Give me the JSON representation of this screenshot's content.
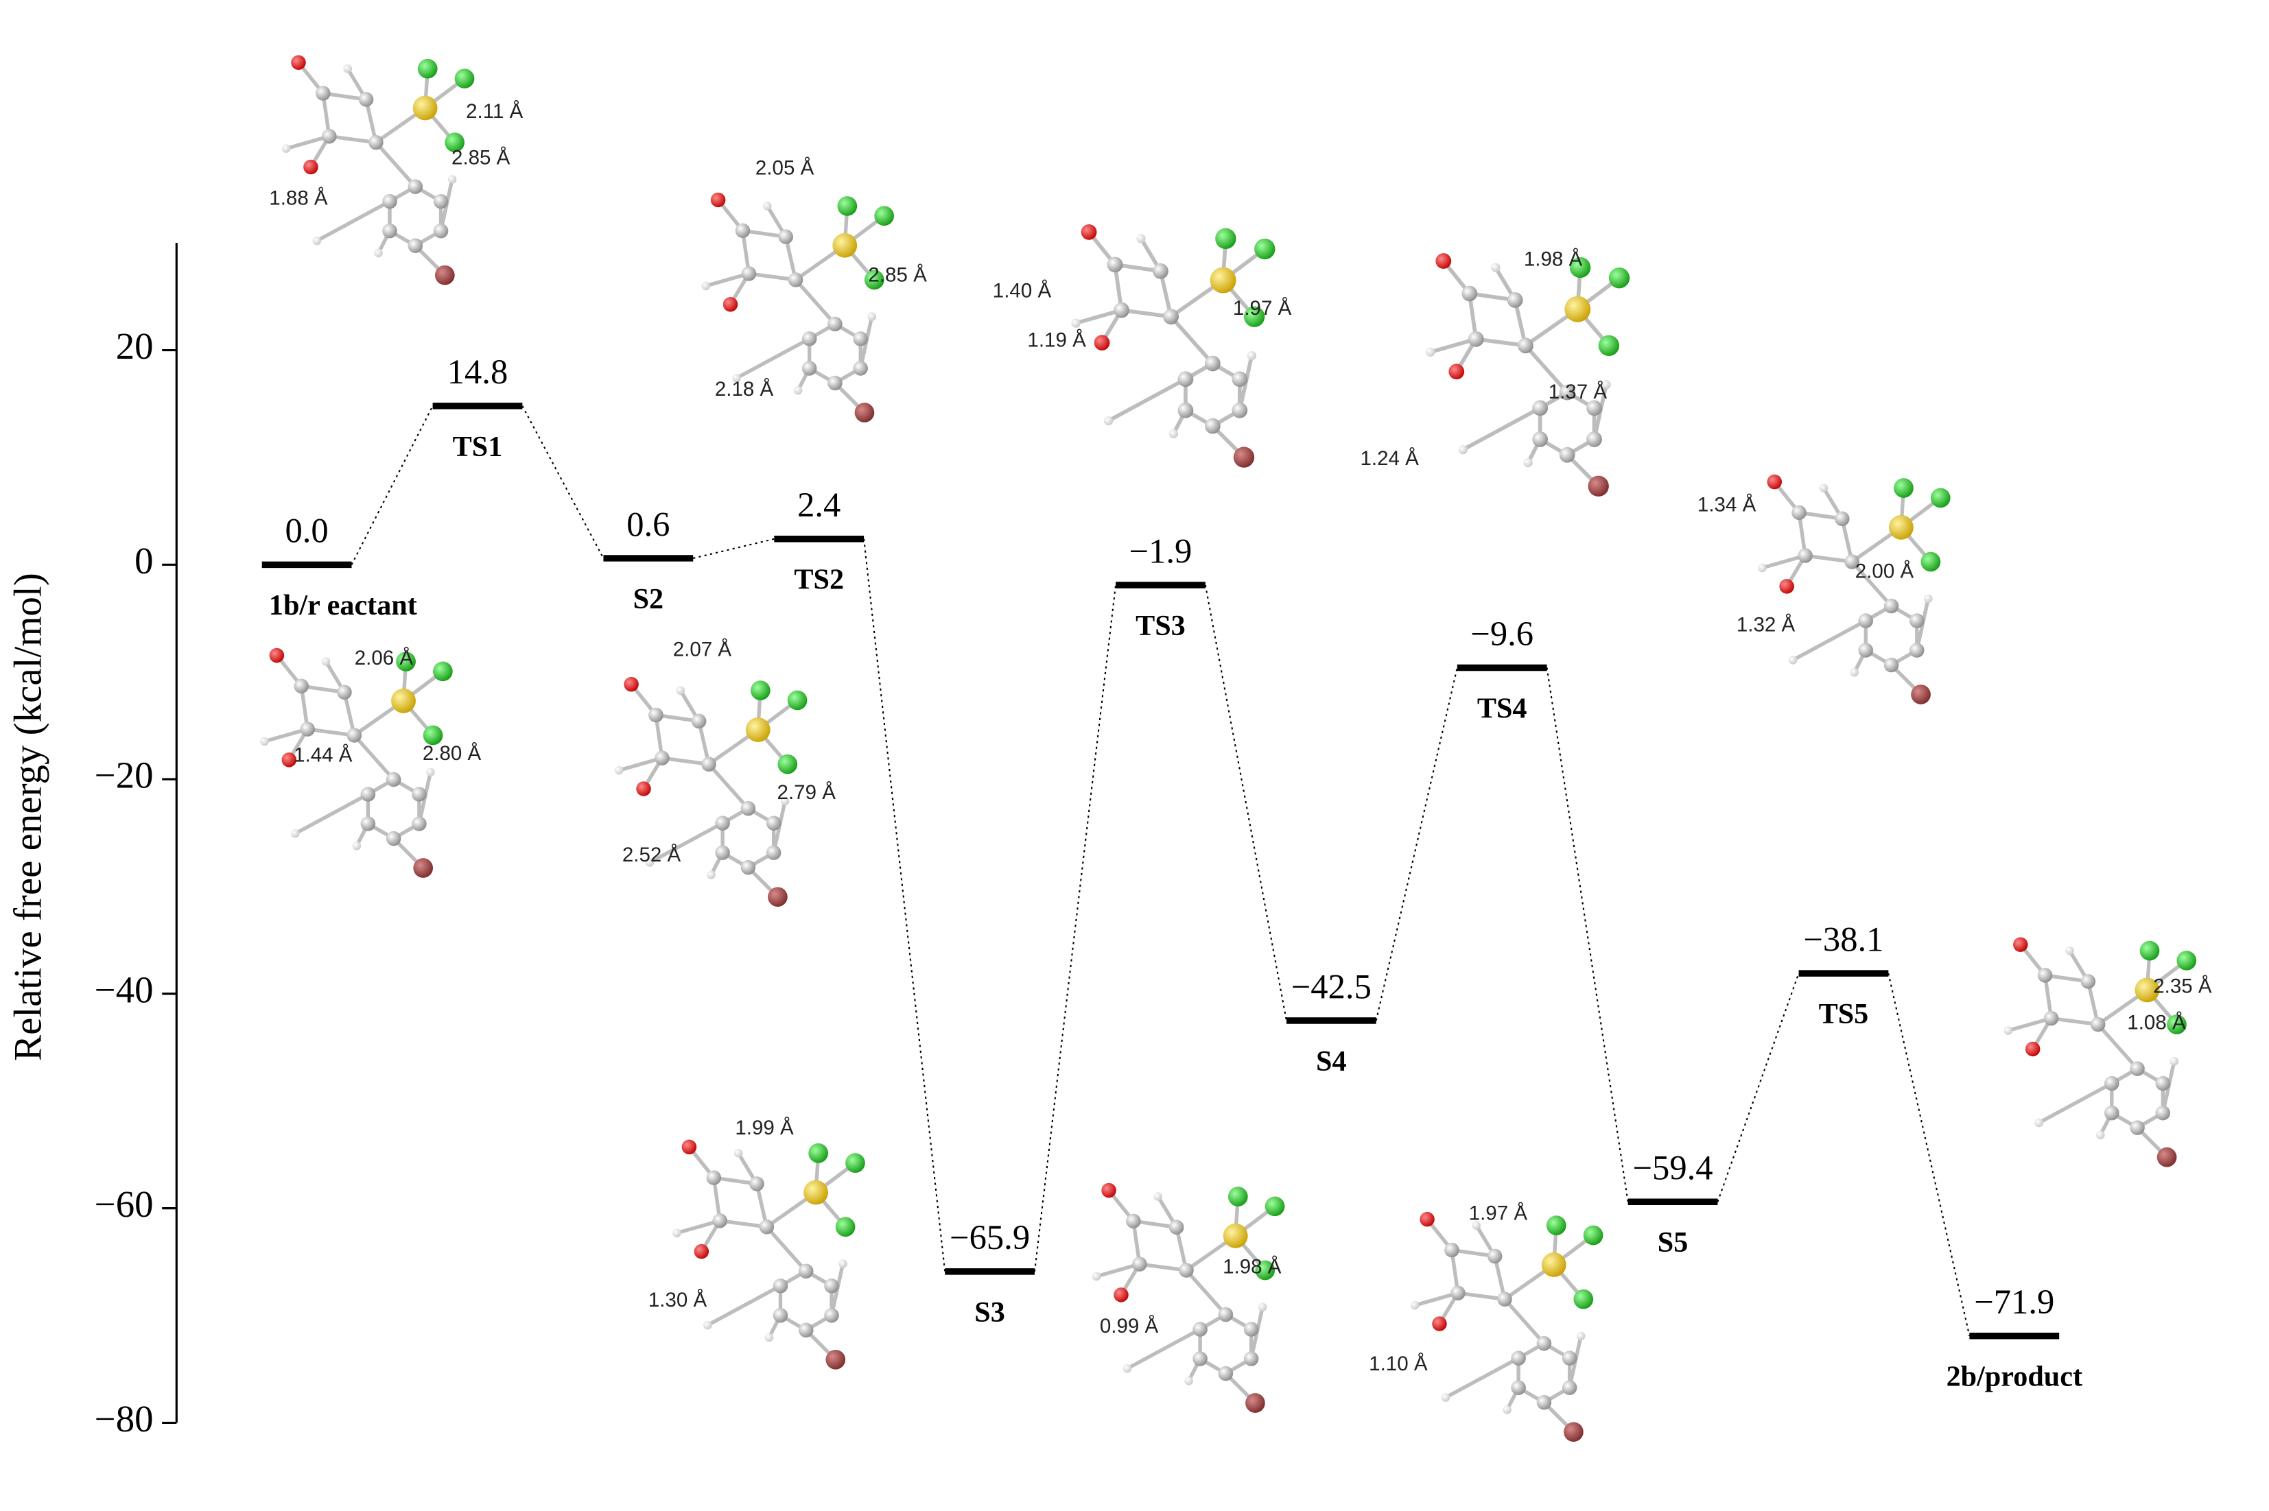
{
  "chart_data": {
    "type": "energy-profile",
    "y_label": "Relative free energy (kcal/mol)",
    "categories": [
      "1b/r eactant",
      "TS1",
      "S2",
      "TS2",
      "S3",
      "TS3",
      "S4",
      "TS4",
      "S5",
      "TS5",
      "2b/product"
    ],
    "values": [
      0.0,
      14.8,
      0.6,
      2.4,
      -65.9,
      -1.9,
      -42.5,
      -9.6,
      -59.4,
      -38.1,
      -71.9
    ],
    "value_labels": [
      "0.0",
      "14.8",
      "0.6",
      "2.4",
      "−65.9",
      "−1.9",
      "−42.5",
      "−9.6",
      "−59.4",
      "−38.1",
      "−71.9"
    ],
    "color": "#000000",
    "ylim": [
      -80,
      30
    ],
    "yticks": [
      {
        "value": -80,
        "label": "−80"
      },
      {
        "value": -60,
        "label": "−60"
      },
      {
        "value": -40,
        "label": "−40"
      },
      {
        "value": -20,
        "label": "−20"
      },
      0,
      20
    ],
    "structures": [
      {
        "labels": [
          "2.11 Å",
          "2.85 Å",
          "1.88 Å"
        ]
      },
      {
        "labels": [
          "2.06 Å",
          "2.80 Å",
          "1.44 Å"
        ]
      },
      {
        "labels": [
          "2.05 Å",
          "2.85 Å",
          "2.18 Å"
        ]
      },
      {
        "labels": [
          "2.07 Å",
          "2.79 Å",
          "2.52 Å"
        ]
      },
      {
        "labels": [
          "1.40 Å",
          "1.19 Å",
          "1.97 Å"
        ]
      },
      {
        "labels": [
          "1.98 Å",
          "1.37 Å",
          "1.24 Å"
        ]
      },
      {
        "labels": [
          "1.34 Å",
          "2.00 Å",
          "1.32 Å"
        ]
      },
      {
        "labels": [
          "1.99 Å",
          "1.30 Å"
        ]
      },
      {
        "labels": [
          "1.98 Å",
          "0.99 Å"
        ]
      },
      {
        "labels": [
          "1.97 Å",
          "1.10 Å"
        ]
      },
      {
        "labels": [
          "2.35 Å",
          "1.08 Å"
        ]
      }
    ]
  }
}
